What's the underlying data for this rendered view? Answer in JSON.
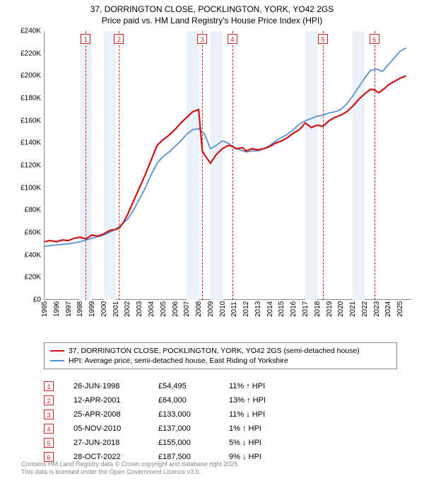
{
  "title_line1": "37, DORRINGTON CLOSE, POCKLINGTON, YORK, YO42 2GS",
  "title_line2": "Price paid vs. HM Land Registry's House Price Index (HPI)",
  "chart": {
    "type": "line",
    "x_range": [
      1995,
      2026
    ],
    "y_range": [
      0,
      240000
    ],
    "y_ticks": [
      0,
      20000,
      40000,
      60000,
      80000,
      100000,
      120000,
      140000,
      160000,
      180000,
      200000,
      220000,
      240000
    ],
    "y_tick_labels": [
      "£0",
      "£20K",
      "£40K",
      "£60K",
      "£80K",
      "£100K",
      "£120K",
      "£140K",
      "£160K",
      "£180K",
      "£200K",
      "£220K",
      "£240K"
    ],
    "x_ticks": [
      1995,
      1996,
      1997,
      1998,
      1999,
      2000,
      2001,
      2002,
      2003,
      2004,
      2005,
      2006,
      2007,
      2008,
      2009,
      2010,
      2011,
      2012,
      2013,
      2014,
      2015,
      2016,
      2017,
      2018,
      2019,
      2020,
      2021,
      2022,
      2023,
      2024,
      2025
    ],
    "band_pairs": [
      [
        1998,
        1999
      ],
      [
        2000,
        2001
      ],
      [
        2007,
        2008
      ],
      [
        2009,
        2010
      ],
      [
        2017,
        2018
      ],
      [
        2021,
        2022
      ]
    ],
    "colors": {
      "red": "#cc1212",
      "blue": "#5b8fd6",
      "marker": "#d02020",
      "band": "#eaf1f8"
    },
    "line_width_red": 2.2,
    "line_width_blue": 1.8,
    "markers": [
      {
        "n": "1",
        "x": 1998.48
      },
      {
        "n": "2",
        "x": 2001.28
      },
      {
        "n": "3",
        "x": 2008.31
      },
      {
        "n": "4",
        "x": 2010.85
      },
      {
        "n": "5",
        "x": 2018.49
      },
      {
        "n": "6",
        "x": 2022.82
      }
    ],
    "series_red": [
      [
        1995.0,
        52000
      ],
      [
        1995.5,
        53000
      ],
      [
        1996.0,
        52000
      ],
      [
        1996.5,
        53500
      ],
      [
        1997.0,
        53000
      ],
      [
        1997.5,
        55000
      ],
      [
        1998.0,
        56000
      ],
      [
        1998.5,
        54500
      ],
      [
        1999.0,
        58000
      ],
      [
        1999.5,
        57000
      ],
      [
        2000.0,
        59000
      ],
      [
        2000.5,
        62000
      ],
      [
        2001.0,
        63000
      ],
      [
        2001.3,
        64000
      ],
      [
        2001.7,
        70000
      ],
      [
        2002.0,
        76000
      ],
      [
        2002.5,
        88000
      ],
      [
        2003.0,
        100000
      ],
      [
        2003.5,
        112000
      ],
      [
        2004.0,
        125000
      ],
      [
        2004.5,
        138000
      ],
      [
        2005.0,
        143000
      ],
      [
        2005.5,
        147000
      ],
      [
        2006.0,
        152000
      ],
      [
        2006.5,
        158000
      ],
      [
        2007.0,
        163000
      ],
      [
        2007.5,
        168000
      ],
      [
        2008.0,
        170000
      ],
      [
        2008.31,
        133000
      ],
      [
        2008.6,
        128000
      ],
      [
        2009.0,
        122000
      ],
      [
        2009.5,
        130000
      ],
      [
        2010.0,
        135000
      ],
      [
        2010.5,
        138000
      ],
      [
        2010.85,
        137000
      ],
      [
        2011.2,
        135000
      ],
      [
        2011.7,
        136000
      ],
      [
        2012.0,
        133000
      ],
      [
        2012.5,
        135000
      ],
      [
        2013.0,
        134000
      ],
      [
        2013.5,
        135000
      ],
      [
        2014.0,
        137000
      ],
      [
        2014.5,
        140000
      ],
      [
        2015.0,
        142000
      ],
      [
        2015.5,
        145000
      ],
      [
        2016.0,
        149000
      ],
      [
        2016.5,
        152000
      ],
      [
        2017.0,
        158000
      ],
      [
        2017.5,
        154000
      ],
      [
        2018.0,
        156000
      ],
      [
        2018.49,
        155000
      ],
      [
        2019.0,
        160000
      ],
      [
        2019.5,
        163000
      ],
      [
        2020.0,
        165000
      ],
      [
        2020.5,
        168000
      ],
      [
        2021.0,
        173000
      ],
      [
        2021.5,
        179000
      ],
      [
        2022.0,
        184000
      ],
      [
        2022.5,
        188000
      ],
      [
        2022.82,
        187500
      ],
      [
        2023.2,
        185000
      ],
      [
        2023.7,
        189000
      ],
      [
        2024.0,
        192000
      ],
      [
        2024.5,
        195000
      ],
      [
        2025.0,
        198000
      ],
      [
        2025.5,
        200000
      ]
    ],
    "series_blue": [
      [
        1995.0,
        48000
      ],
      [
        1996.0,
        49000
      ],
      [
        1997.0,
        50000
      ],
      [
        1998.0,
        52000
      ],
      [
        1999.0,
        55000
      ],
      [
        2000.0,
        58000
      ],
      [
        2001.0,
        63000
      ],
      [
        2002.0,
        72000
      ],
      [
        2002.5,
        80000
      ],
      [
        2003.0,
        90000
      ],
      [
        2003.5,
        100000
      ],
      [
        2004.0,
        112000
      ],
      [
        2004.5,
        122000
      ],
      [
        2005.0,
        128000
      ],
      [
        2005.5,
        132000
      ],
      [
        2006.0,
        137000
      ],
      [
        2006.5,
        142000
      ],
      [
        2007.0,
        148000
      ],
      [
        2007.5,
        152000
      ],
      [
        2008.0,
        153000
      ],
      [
        2008.5,
        148000
      ],
      [
        2009.0,
        135000
      ],
      [
        2009.5,
        138000
      ],
      [
        2010.0,
        142000
      ],
      [
        2010.5,
        140000
      ],
      [
        2011.0,
        136000
      ],
      [
        2011.5,
        134000
      ],
      [
        2012.0,
        132000
      ],
      [
        2012.5,
        133000
      ],
      [
        2013.0,
        133000
      ],
      [
        2013.5,
        135000
      ],
      [
        2014.0,
        138000
      ],
      [
        2014.5,
        142000
      ],
      [
        2015.0,
        145000
      ],
      [
        2015.5,
        148000
      ],
      [
        2016.0,
        152000
      ],
      [
        2016.5,
        157000
      ],
      [
        2017.0,
        160000
      ],
      [
        2017.5,
        162000
      ],
      [
        2018.0,
        164000
      ],
      [
        2018.5,
        165000
      ],
      [
        2019.0,
        167000
      ],
      [
        2019.5,
        168000
      ],
      [
        2020.0,
        170000
      ],
      [
        2020.5,
        175000
      ],
      [
        2021.0,
        182000
      ],
      [
        2021.5,
        190000
      ],
      [
        2022.0,
        198000
      ],
      [
        2022.5,
        205000
      ],
      [
        2023.0,
        206000
      ],
      [
        2023.5,
        204000
      ],
      [
        2024.0,
        210000
      ],
      [
        2024.5,
        216000
      ],
      [
        2025.0,
        222000
      ],
      [
        2025.5,
        225000
      ]
    ]
  },
  "legend": {
    "red": "37, DORRINGTON CLOSE, POCKLINGTON, YORK, YO42 2GS (semi-detached house)",
    "blue": "HPI: Average price, semi-detached house, East Riding of Yorkshire"
  },
  "sales": [
    {
      "n": "1",
      "date": "26-JUN-1998",
      "price": "£54,495",
      "hpi": "11% ↑ HPI"
    },
    {
      "n": "2",
      "date": "12-APR-2001",
      "price": "£64,000",
      "hpi": "13% ↑ HPI"
    },
    {
      "n": "3",
      "date": "25-APR-2008",
      "price": "£133,000",
      "hpi": "11% ↓ HPI"
    },
    {
      "n": "4",
      "date": "05-NOV-2010",
      "price": "£137,000",
      "hpi": "1% ↑ HPI"
    },
    {
      "n": "5",
      "date": "27-JUN-2018",
      "price": "£155,000",
      "hpi": "5% ↓ HPI"
    },
    {
      "n": "6",
      "date": "28-OCT-2022",
      "price": "£187,500",
      "hpi": "9% ↓ HPI"
    }
  ],
  "footnote_line1": "Contains HM Land Registry data © Crown copyright and database right 2025.",
  "footnote_line2": "This data is licensed under the Open Government Licence v3.0."
}
